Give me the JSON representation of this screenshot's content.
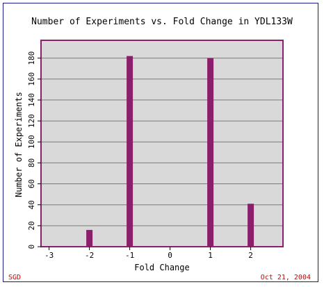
{
  "chart_data": {
    "type": "bar",
    "title": "Number of Experiments vs. Fold Change in YDL133W",
    "xlabel": "Fold Change",
    "ylabel": "Number of Experiments",
    "x": [
      -2,
      -1,
      1,
      2
    ],
    "values": [
      16,
      182,
      180,
      41
    ],
    "xlim": [
      -3.2,
      2.8
    ],
    "ylim": [
      0,
      197
    ],
    "xticks": [
      "-3",
      "-2",
      "-1",
      "0",
      "1",
      "2"
    ],
    "yticks": [
      "0",
      "20",
      "40",
      "60",
      "80",
      "100",
      "120",
      "140",
      "160",
      "180"
    ],
    "grid": "horizontal",
    "colors": {
      "bar": "#8b1f6b",
      "plot_background": "#d9d9d9",
      "plot_border": "#8b1f6b",
      "gridline": "#7a7a7a",
      "footer_text": "#cc0000"
    }
  },
  "footer": {
    "left": "SGD",
    "right": "Oct 21, 2004"
  }
}
